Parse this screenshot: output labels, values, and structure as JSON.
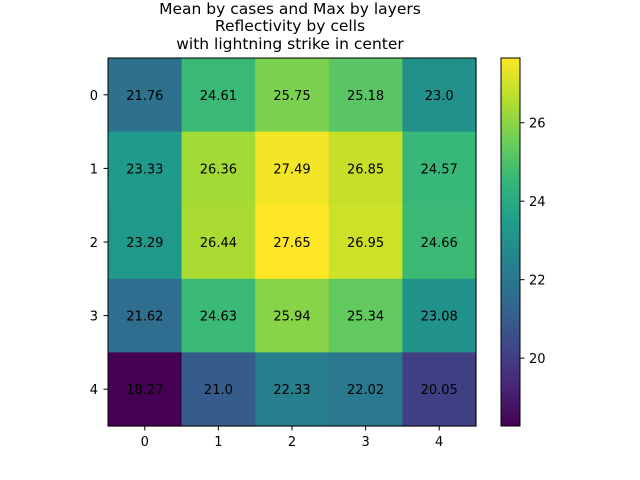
{
  "chart_data": {
    "type": "heatmap",
    "title_lines": [
      "Mean by cases and Max by layers",
      "Reflectivity by cells",
      "with lightning strike in center"
    ],
    "x_ticks": [
      "0",
      "1",
      "2",
      "3",
      "4"
    ],
    "y_ticks": [
      "0",
      "1",
      "2",
      "3",
      "4"
    ],
    "values": [
      [
        21.76,
        24.61,
        25.75,
        25.18,
        23.0
      ],
      [
        23.33,
        26.36,
        27.49,
        26.85,
        24.57
      ],
      [
        23.29,
        26.44,
        27.65,
        26.95,
        24.66
      ],
      [
        21.62,
        24.63,
        25.94,
        25.34,
        23.08
      ],
      [
        18.27,
        21.0,
        22.33,
        22.02,
        20.05
      ]
    ],
    "cell_labels": [
      [
        "21.76",
        "24.61",
        "25.75",
        "25.18",
        "23.0"
      ],
      [
        "23.33",
        "26.36",
        "27.49",
        "26.85",
        "24.57"
      ],
      [
        "23.29",
        "26.44",
        "27.65",
        "26.95",
        "24.66"
      ],
      [
        "21.62",
        "24.63",
        "25.94",
        "25.34",
        "23.08"
      ],
      [
        "18.27",
        "21.0",
        "22.33",
        "22.02",
        "20.05"
      ]
    ],
    "colormap": "viridis",
    "colorbar": {
      "vmin": 18.27,
      "vmax": 27.65,
      "ticks": [
        20,
        22,
        24,
        26
      ],
      "tick_labels": [
        "20",
        "22",
        "24",
        "26"
      ]
    },
    "grid": false,
    "xlabel": "",
    "ylabel": ""
  }
}
